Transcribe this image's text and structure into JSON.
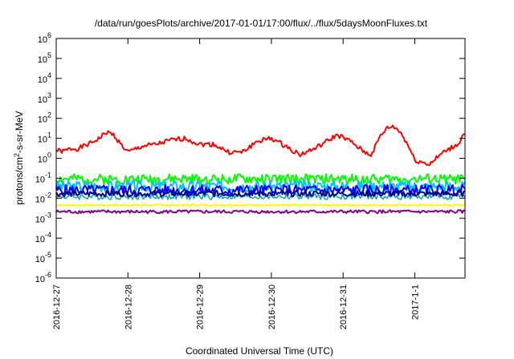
{
  "chart_data": {
    "type": "line",
    "title": "/data/run/goesPlots/archive/2017-01-01/17:00/flux/../flux/5daysMoonFluxes.txt",
    "xlabel": "Coordinated Universal Time (UTC)",
    "ylabel": {
      "prefix": "protons/cm",
      "sup": "2",
      "suffix": "-s-sr-MeV"
    },
    "yscale": "log",
    "ylim": [
      1e-06,
      1000000.0
    ],
    "xlim": [
      0,
      5.7
    ],
    "x_unit": "days since 2016-12-27",
    "grid": false,
    "legend": "none",
    "x_ticks": [
      {
        "x": 0,
        "label": "2016-12-27"
      },
      {
        "x": 1,
        "label": "2016-12-28"
      },
      {
        "x": 2,
        "label": "2016-12-29"
      },
      {
        "x": 3,
        "label": "2016-12-30"
      },
      {
        "x": 4,
        "label": "2016-12-31"
      },
      {
        "x": 5,
        "label": "2017-1-1"
      }
    ],
    "y_ticks": [
      {
        "exp": -6
      },
      {
        "exp": -5
      },
      {
        "exp": -4
      },
      {
        "exp": -3
      },
      {
        "exp": -2
      },
      {
        "exp": -1
      },
      {
        "exp": 0
      },
      {
        "exp": 1
      },
      {
        "exp": 2
      },
      {
        "exp": 3
      },
      {
        "exp": 4
      },
      {
        "exp": 5
      },
      {
        "exp": 6
      }
    ],
    "y_tick_base": "10",
    "series": [
      {
        "color": "#ff0000",
        "width": 2,
        "noise": 0.12,
        "seed": 1,
        "x": [
          0,
          0.1,
          0.2,
          0.3,
          0.45,
          0.6,
          0.7,
          0.8,
          0.9,
          1.0,
          1.2,
          1.4,
          1.6,
          1.8,
          2.0,
          2.2,
          2.4,
          2.6,
          2.8,
          3.0,
          3.2,
          3.4,
          3.6,
          3.8,
          3.92,
          4.1,
          4.3,
          4.4,
          4.5,
          4.6,
          4.7,
          4.8,
          4.9,
          5.0,
          5.2,
          5.4,
          5.6,
          5.7
        ],
        "y": [
          2.5,
          2.2,
          3,
          3,
          5,
          10,
          20,
          15,
          5,
          2,
          4,
          5,
          8,
          10,
          5,
          5,
          2,
          2,
          7,
          10,
          4,
          1.5,
          3,
          8,
          15,
          7,
          2,
          1.5,
          10,
          30,
          40,
          20,
          5,
          0.8,
          0.5,
          2,
          5,
          20
        ]
      },
      {
        "color": "#00ff00",
        "width": 2,
        "noise": 0.25,
        "seed": 2,
        "base": 0.09
      },
      {
        "color": "#00c0ff",
        "width": 2,
        "noise": 0.28,
        "seed": 3,
        "base": 0.04
      },
      {
        "color": "#00aaaa",
        "width": 1.5,
        "noise": 0.15,
        "seed": 4,
        "base": 0.012
      },
      {
        "color": "#0000ff",
        "width": 2,
        "noise": 0.28,
        "seed": 5,
        "base": 0.025
      },
      {
        "color": "#00008b",
        "width": 2,
        "noise": 0.15,
        "seed": 6,
        "base": 0.017
      },
      {
        "color": "#ffff00",
        "width": 2,
        "noise": 0.03,
        "seed": 7,
        "base": 0.0045
      },
      {
        "color": "#800080",
        "width": 2,
        "noise": 0.08,
        "seed": 8,
        "base": 0.0021
      }
    ]
  }
}
